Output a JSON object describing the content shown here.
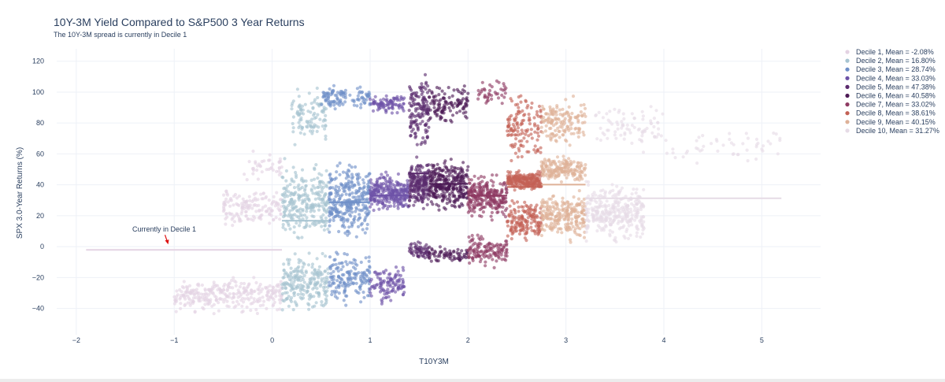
{
  "chart_data": {
    "type": "scatter",
    "title": "10Y-3M Yield Compared to S&P500 3 Year Returns",
    "subtitle": "The 10Y-3M spread is currently in Decile 1",
    "xlabel": "T10Y3M",
    "ylabel": "SPX 3.0-Year Returns (%)",
    "xlim": [
      -2.2,
      5.6
    ],
    "ylim": [
      -57,
      128
    ],
    "xticks": [
      -2,
      -1,
      0,
      1,
      2,
      3,
      4,
      5
    ],
    "xtick_labels": [
      "−2",
      "−1",
      "0",
      "1",
      "2",
      "3",
      "4",
      "5"
    ],
    "yticks": [
      -40,
      -20,
      0,
      20,
      40,
      60,
      80,
      100,
      120
    ],
    "ytick_labels": [
      "−40",
      "−20",
      "0",
      "20",
      "40",
      "60",
      "80",
      "100",
      "120"
    ],
    "series": [
      {
        "name": "Decile 1, Mean = -2.08%",
        "color": "#e4d3e3",
        "x_range": [
          -1.9,
          0.1
        ],
        "mean": -2.08,
        "clusters": [
          {
            "x": [
              -1.0,
              0.1
            ],
            "y": [
              -45,
              -18
            ],
            "n": 300
          },
          {
            "x": [
              -0.5,
              0.1
            ],
            "y": [
              10,
              40
            ],
            "n": 150
          },
          {
            "x": [
              -0.3,
              0.1
            ],
            "y": [
              40,
              65
            ],
            "n": 40
          }
        ]
      },
      {
        "name": "Decile 2, Mean = 16.80%",
        "color": "#a7c4d1",
        "x_range": [
          0.1,
          0.58
        ],
        "mean": 16.8,
        "clusters": [
          {
            "x": [
              0.1,
              0.58
            ],
            "y": [
              -47,
              0
            ],
            "n": 220
          },
          {
            "x": [
              0.1,
              0.58
            ],
            "y": [
              0,
              60
            ],
            "n": 260
          },
          {
            "x": [
              0.2,
              0.55
            ],
            "y": [
              60,
              105
            ],
            "n": 100
          }
        ]
      },
      {
        "name": "Decile 3, Mean = 28.74%",
        "color": "#6f8fc8",
        "x_range": [
          0.58,
          1.0
        ],
        "mean": 28.74,
        "clusters": [
          {
            "x": [
              0.58,
              1.0
            ],
            "y": [
              -40,
              0
            ],
            "n": 160
          },
          {
            "x": [
              0.58,
              1.0
            ],
            "y": [
              0,
              60
            ],
            "n": 300
          },
          {
            "x": [
              0.5,
              1.0
            ],
            "y": [
              85,
              108
            ],
            "n": 110
          }
        ]
      },
      {
        "name": "Decile 4, Mean = 33.03%",
        "color": "#6d52a8",
        "x_range": [
          1.0,
          1.4
        ],
        "mean": 33.03,
        "clusters": [
          {
            "x": [
              1.0,
              1.35
            ],
            "y": [
              -38,
              -10
            ],
            "n": 110
          },
          {
            "x": [
              1.0,
              1.4
            ],
            "y": [
              20,
              50
            ],
            "n": 260
          },
          {
            "x": [
              1.0,
              1.35
            ],
            "y": [
              85,
              100
            ],
            "n": 90
          }
        ]
      },
      {
        "name": "Decile 5, Mean = 47.38%",
        "color": "#5b2b6e",
        "x_range": [
          1.4,
          1.6
        ],
        "mean": 47.38,
        "clusters": [
          {
            "x": [
              1.4,
              1.6
            ],
            "y": [
              -10,
              5
            ],
            "n": 60
          },
          {
            "x": [
              1.4,
              1.6
            ],
            "y": [
              20,
              60
            ],
            "n": 200
          },
          {
            "x": [
              1.4,
              1.6
            ],
            "y": [
              60,
              116
            ],
            "n": 140
          }
        ]
      },
      {
        "name": "Decile 6, Mean = 40.58%",
        "color": "#4c1a55",
        "x_range": [
          1.6,
          2.0
        ],
        "mean": 40.58,
        "clusters": [
          {
            "x": [
              1.6,
              2.0
            ],
            "y": [
              -12,
              2
            ],
            "n": 70
          },
          {
            "x": [
              1.6,
              2.0
            ],
            "y": [
              20,
              60
            ],
            "n": 300
          },
          {
            "x": [
              1.6,
              2.0
            ],
            "y": [
              75,
              110
            ],
            "n": 120
          }
        ]
      },
      {
        "name": "Decile 7, Mean = 33.02%",
        "color": "#8e3a62",
        "x_range": [
          2.0,
          2.4
        ],
        "mean": 33.02,
        "clusters": [
          {
            "x": [
              2.0,
              2.4
            ],
            "y": [
              -15,
              10
            ],
            "n": 130
          },
          {
            "x": [
              2.0,
              2.4
            ],
            "y": [
              15,
              50
            ],
            "n": 260
          },
          {
            "x": [
              2.1,
              2.4
            ],
            "y": [
              90,
              110
            ],
            "n": 40
          }
        ]
      },
      {
        "name": "Decile 8, Mean = 38.61%",
        "color": "#c36155",
        "x_range": [
          2.4,
          2.75
        ],
        "mean": 38.61,
        "clusters": [
          {
            "x": [
              2.4,
              2.75
            ],
            "y": [
              0,
              35
            ],
            "n": 160
          },
          {
            "x": [
              2.4,
              2.75
            ],
            "y": [
              35,
              50
            ],
            "n": 220
          },
          {
            "x": [
              2.4,
              2.75
            ],
            "y": [
              50,
              105
            ],
            "n": 130
          }
        ]
      },
      {
        "name": "Decile 9, Mean = 40.15%",
        "color": "#deb198",
        "x_range": [
          2.75,
          3.2
        ],
        "mean": 40.15,
        "clusters": [
          {
            "x": [
              2.75,
              3.2
            ],
            "y": [
              0,
              40
            ],
            "n": 240
          },
          {
            "x": [
              2.75,
              3.2
            ],
            "y": [
              40,
              60
            ],
            "n": 180
          },
          {
            "x": [
              2.75,
              3.2
            ],
            "y": [
              60,
              100
            ],
            "n": 150
          }
        ]
      },
      {
        "name": "Decile 10, Mean = 31.27%",
        "color": "#e6dbe6",
        "x_range": [
          3.2,
          5.2
        ],
        "mean": 31.27,
        "clusters": [
          {
            "x": [
              3.2,
              3.8
            ],
            "y": [
              0,
              45
            ],
            "n": 330
          },
          {
            "x": [
              3.3,
              4.0
            ],
            "y": [
              60,
              95
            ],
            "n": 80
          },
          {
            "x": [
              4.0,
              5.2
            ],
            "y": [
              50,
              80
            ],
            "n": 50
          }
        ]
      }
    ],
    "annotation": {
      "text": "Currently in Decile 1",
      "x": -1.07,
      "y": 1,
      "arrow_color": "#dd1111"
    }
  }
}
